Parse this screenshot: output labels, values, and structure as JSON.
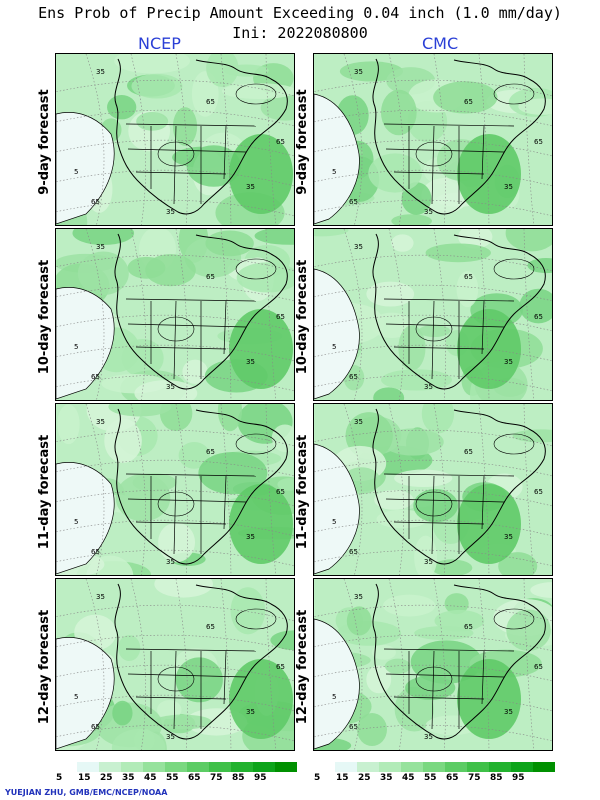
{
  "title": "Ens Prob of Precip Amount Exceeding 0.04 inch (1.0 mm/day)",
  "init": "Ini: 2022080800",
  "columns": [
    "NCEP",
    "CMC"
  ],
  "rows": [
    "9-day forecast",
    "10-day forecast",
    "11-day forecast",
    "12-day forecast"
  ],
  "contour_labels": [
    "5",
    "35",
    "65"
  ],
  "legend": {
    "ticks": [
      "5",
      "15",
      "25",
      "35",
      "45",
      "55",
      "65",
      "75",
      "85",
      "95"
    ],
    "colors": [
      "#ffffff",
      "#e6f8f6",
      "#c8f0d0",
      "#b2ebb8",
      "#96e29c",
      "#7ad880",
      "#5ccc64",
      "#3fc048",
      "#22b22e",
      "#0da41a",
      "#009000"
    ]
  },
  "credit": "YUEJIAN ZHU, GMB/EMC/NCEP/NOAA"
}
